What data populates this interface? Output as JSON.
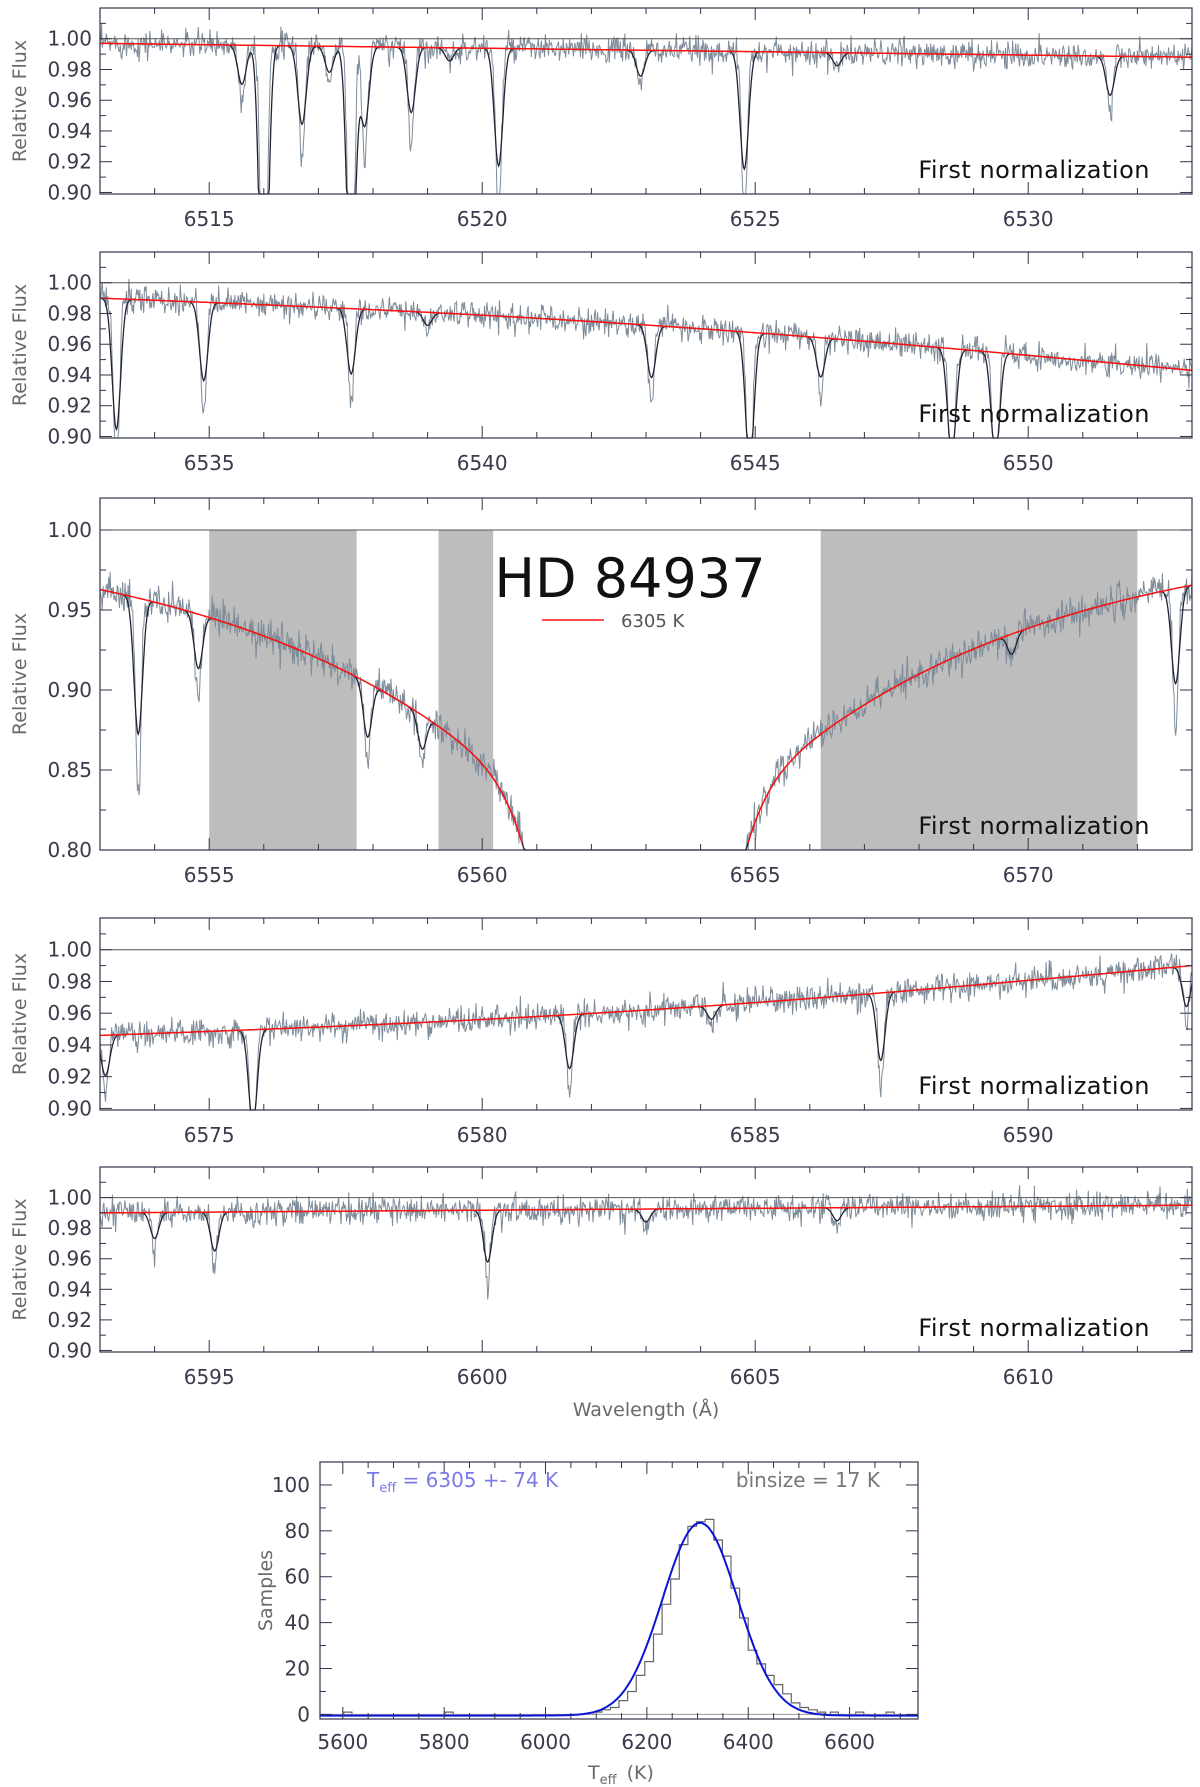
{
  "chart_data": [
    {
      "type": "line",
      "note": "First normalization",
      "xlim": [
        6513,
        6533
      ],
      "xticks": [
        6515,
        6520,
        6525,
        6530
      ],
      "ylim": [
        0.899,
        1.02
      ],
      "yticks": [
        0.9,
        0.92,
        0.94,
        0.96,
        0.98,
        1.0
      ],
      "ytick_labels": [
        "0.90",
        "0.92",
        "0.94",
        "0.96",
        "0.98",
        "1.00"
      ],
      "ylabel": "Relative Flux",
      "xlabel": "",
      "continuum": {
        "x": [
          6513,
          6533
        ],
        "y": [
          0.997,
          0.988
        ]
      },
      "lines": [
        {
          "x": 6515.6,
          "depth": 0.03
        },
        {
          "x": 6516.0,
          "depth": 0.25
        },
        {
          "x": 6516.7,
          "depth": 0.06
        },
        {
          "x": 6517.2,
          "depth": 0.02
        },
        {
          "x": 6517.6,
          "depth": 0.2
        },
        {
          "x": 6517.85,
          "depth": 0.06
        },
        {
          "x": 6518.7,
          "depth": 0.05
        },
        {
          "x": 6519.4,
          "depth": 0.01
        },
        {
          "x": 6520.3,
          "depth": 0.09
        },
        {
          "x": 6522.9,
          "depth": 0.02
        },
        {
          "x": 6524.8,
          "depth": 0.09
        },
        {
          "x": 6526.5,
          "depth": 0.01
        },
        {
          "x": 6531.5,
          "depth": 0.03
        }
      ]
    },
    {
      "type": "line",
      "note": "First normalization",
      "xlim": [
        6533,
        6553
      ],
      "xticks": [
        6535,
        6540,
        6545,
        6550
      ],
      "ylim": [
        0.899,
        1.02
      ],
      "yticks": [
        0.9,
        0.92,
        0.94,
        0.96,
        0.98,
        1.0
      ],
      "ytick_labels": [
        "0.90",
        "0.92",
        "0.94",
        "0.96",
        "0.98",
        "1.00"
      ],
      "ylabel": "Relative Flux",
      "xlabel": "",
      "continuum": {
        "x": [
          6533,
          6553
        ],
        "y": [
          0.99,
          0.943
        ]
      },
      "lines": [
        {
          "x": 6533.3,
          "depth": 0.1
        },
        {
          "x": 6534.9,
          "depth": 0.06
        },
        {
          "x": 6537.6,
          "depth": 0.05
        },
        {
          "x": 6539.0,
          "depth": 0.01
        },
        {
          "x": 6543.1,
          "depth": 0.04
        },
        {
          "x": 6544.9,
          "depth": 0.1
        },
        {
          "x": 6546.2,
          "depth": 0.03
        },
        {
          "x": 6548.6,
          "depth": 0.08
        },
        {
          "x": 6549.4,
          "depth": 0.08
        }
      ]
    },
    {
      "type": "line",
      "note": "First normalization",
      "title": "HD 84937",
      "legend": "6305 K",
      "xlim": [
        6553,
        6573
      ],
      "xticks": [
        6555,
        6560,
        6565,
        6570
      ],
      "ylim": [
        0.8,
        1.02
      ],
      "yticks": [
        0.8,
        0.85,
        0.9,
        0.95,
        1.0
      ],
      "ytick_labels": [
        "0.80",
        "0.85",
        "0.90",
        "0.95",
        "1.00"
      ],
      "ylabel": "Relative Flux",
      "xlabel": "",
      "halpha": {
        "center": 6562.8,
        "wing_depth": 0.08,
        "core_depth": 0.45
      },
      "shaded_regions": [
        [
          6555.0,
          6557.7
        ],
        [
          6559.2,
          6560.2
        ],
        [
          6566.2,
          6572.0
        ]
      ],
      "lines": [
        {
          "x": 6553.7,
          "depth": 0.1
        },
        {
          "x": 6554.8,
          "depth": 0.04
        },
        {
          "x": 6557.9,
          "depth": 0.04
        },
        {
          "x": 6558.9,
          "depth": 0.025
        },
        {
          "x": 6569.7,
          "depth": 0.015
        },
        {
          "x": 6572.7,
          "depth": 0.07
        }
      ]
    },
    {
      "type": "line",
      "note": "First normalization",
      "xlim": [
        6573,
        6593
      ],
      "xticks": [
        6575,
        6580,
        6585,
        6590
      ],
      "ylim": [
        0.899,
        1.02
      ],
      "yticks": [
        0.9,
        0.92,
        0.94,
        0.96,
        0.98,
        1.0
      ],
      "ytick_labels": [
        "0.90",
        "0.92",
        "0.94",
        "0.96",
        "0.98",
        "1.00"
      ],
      "ylabel": "Relative Flux",
      "xlabel": "",
      "continuum": {
        "x": [
          6573,
          6593
        ],
        "y": [
          0.946,
          0.99
        ]
      },
      "lines": [
        {
          "x": 6573.1,
          "depth": 0.03
        },
        {
          "x": 6575.8,
          "depth": 0.07
        },
        {
          "x": 6581.6,
          "depth": 0.04
        },
        {
          "x": 6584.2,
          "depth": 0.01
        },
        {
          "x": 6587.3,
          "depth": 0.05
        },
        {
          "x": 6592.9,
          "depth": 0.03
        }
      ]
    },
    {
      "type": "line",
      "note": "First normalization",
      "xlim": [
        6593,
        6613
      ],
      "xticks": [
        6595,
        6600,
        6605,
        6610
      ],
      "ylim": [
        0.899,
        1.02
      ],
      "yticks": [
        0.9,
        0.92,
        0.94,
        0.96,
        0.98,
        1.0
      ],
      "ytick_labels": [
        "0.90",
        "0.92",
        "0.94",
        "0.96",
        "0.98",
        "1.00"
      ],
      "ylabel": "Relative Flux",
      "xlabel": "Wavelength (Å)",
      "continuum": {
        "x": [
          6593,
          6613
        ],
        "y": [
          0.99,
          0.995
        ]
      },
      "lines": [
        {
          "x": 6594.0,
          "depth": 0.02
        },
        {
          "x": 6595.1,
          "depth": 0.03
        },
        {
          "x": 6600.1,
          "depth": 0.04
        },
        {
          "x": 6603.0,
          "depth": 0.01
        },
        {
          "x": 6606.5,
          "depth": 0.01
        }
      ]
    },
    {
      "type": "bar",
      "kind": "histogram",
      "title": "T_eff = 6305 +- 74 K",
      "title_main": "T",
      "title_sub": "eff",
      "title_rest": " = 6305 +- 74 K",
      "binsize_label": "binsize = 17 K",
      "xlabel": "T",
      "xlabel_sub": "eff",
      "xlabel_unit": "(K)",
      "ylabel": "Samples",
      "xlim": [
        5555,
        6735
      ],
      "ylim": [
        -2,
        110
      ],
      "xticks": [
        5600,
        5800,
        6000,
        6200,
        6400,
        6600
      ],
      "yticks": [
        0,
        20,
        40,
        60,
        80,
        100
      ],
      "gauss": {
        "mean": 6305,
        "sigma": 74,
        "amplitude": 84
      },
      "bin_edges": [
        6094,
        6111,
        6128,
        6145,
        6162,
        6179,
        6196,
        6213,
        6230,
        6247,
        6264,
        6281,
        6298,
        6315,
        6332,
        6349,
        6366,
        6383,
        6400,
        6417,
        6434,
        6451,
        6468,
        6485,
        6502,
        6519,
        6536,
        6553
      ],
      "values": [
        1,
        2,
        3,
        6,
        10,
        17,
        23,
        35,
        48,
        59,
        74,
        82,
        84,
        85,
        76,
        69,
        55,
        42,
        28,
        22,
        17,
        13,
        9,
        5,
        3,
        2,
        1
      ],
      "outliers": [
        {
          "x": 5610,
          "y": 1
        },
        {
          "x": 5810,
          "y": 1
        },
        {
          "x": 6570,
          "y": 1
        },
        {
          "x": 6620,
          "y": 1
        },
        {
          "x": 6680,
          "y": 1
        }
      ]
    }
  ]
}
